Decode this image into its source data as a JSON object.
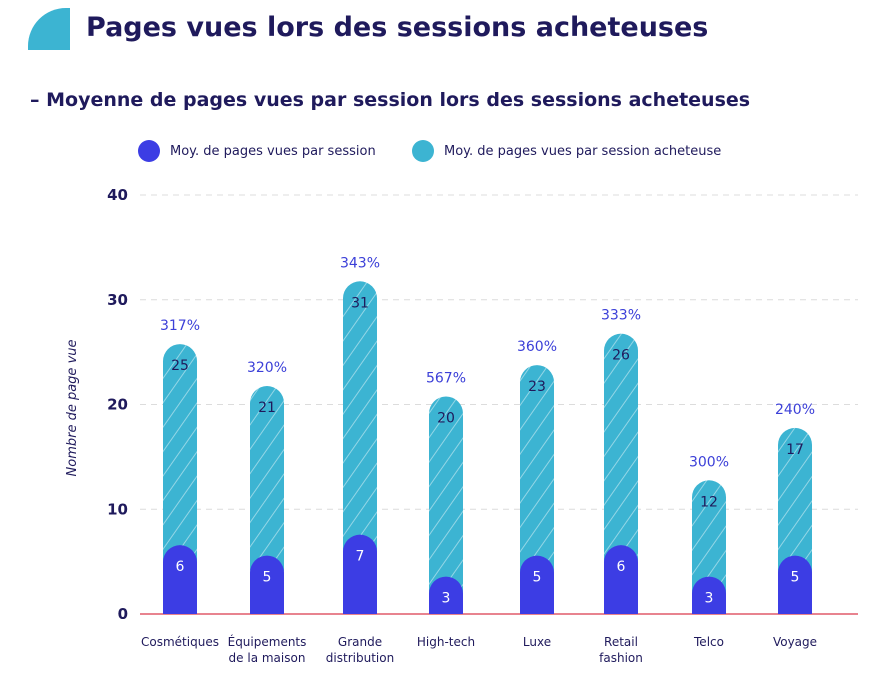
{
  "title": "Pages vues lors des sessions acheteuses",
  "subtitle": "– Moyenne de pages vues par session lors des sessions acheteuses",
  "colors": {
    "session": "#3c3de4",
    "buyer_session": "#3cb4d2",
    "axis_line": "#e8838f",
    "title": "#1f1a5c"
  },
  "chart_data": {
    "type": "bar",
    "title": "Moyenne de pages vues par session lors des sessions acheteuses",
    "ylabel": "Nombre de page vue",
    "xlabel": "",
    "ylim": [
      0,
      40
    ],
    "yticks": [
      0,
      10,
      20,
      30,
      40
    ],
    "legend_position": "top",
    "categories": [
      [
        "Cosmétiques"
      ],
      [
        "Équipements",
        "de la maison"
      ],
      [
        "Grande",
        "distribution"
      ],
      [
        "High-tech"
      ],
      [
        "Luxe"
      ],
      [
        "Retail",
        "fashion"
      ],
      [
        "Telco"
      ],
      [
        "Voyage"
      ]
    ],
    "series": [
      {
        "name": "Moy. de pages vues par session",
        "values": [
          6,
          5,
          7,
          3,
          5,
          6,
          3,
          5
        ]
      },
      {
        "name": "Moy. de pages vues par session acheteuse",
        "values": [
          25,
          21,
          31,
          20,
          23,
          26,
          12,
          17
        ]
      }
    ],
    "annotations": [
      "317%",
      "320%",
      "343%",
      "567%",
      "360%",
      "333%",
      "300%",
      "240%"
    ]
  }
}
